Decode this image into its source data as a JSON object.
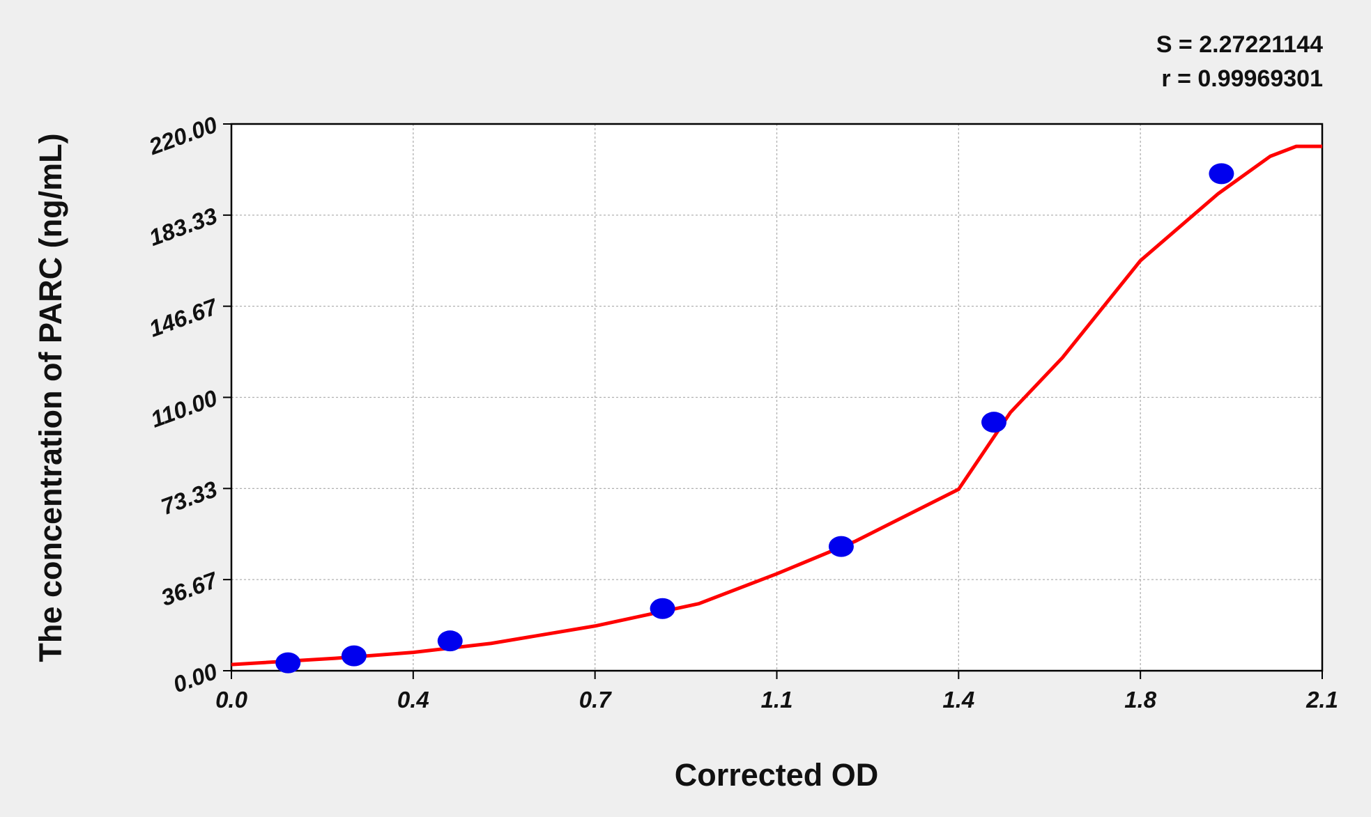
{
  "chart_data": {
    "type": "scatter",
    "annotations": [
      "S = 2.27221144",
      "r = 0.99969301"
    ],
    "xlabel": "Corrected OD",
    "ylabel": "The concentration of PARC (ng/mL)",
    "xlim": [
      0,
      2.1
    ],
    "xticks": [
      {
        "value": 0,
        "label": "0.0"
      },
      {
        "value": 0.35,
        "label": "0.4"
      },
      0.7,
      {
        "value": 1.05,
        "label": "1.1"
      },
      1.4,
      {
        "value": 1.75,
        "label": "1.8"
      },
      2.1
    ],
    "ylim": [
      0,
      220
    ],
    "yticks": [
      {
        "value": 0,
        "label": "0.00"
      },
      36.67,
      73.33,
      {
        "value": 110,
        "label": "110.00"
      },
      146.67,
      183.33,
      {
        "value": 220,
        "label": "220.00"
      }
    ],
    "grid": true,
    "series": [
      {
        "style": "markers",
        "color": "#0000ee",
        "x": [
          0.109,
          0.236,
          0.421,
          0.83,
          1.174,
          1.468,
          1.906
        ],
        "values": [
          3.2,
          6,
          12,
          25,
          50,
          100,
          200
        ]
      },
      {
        "style": "line",
        "color": "#ff0000",
        "x": [
          0,
          0.2,
          0.35,
          0.5,
          0.7,
          0.9,
          1.05,
          1.2,
          1.4,
          1.5,
          1.6,
          1.75,
          1.9,
          2.0,
          2.05,
          2.1
        ],
        "values": [
          2.5,
          5,
          7.4,
          11,
          18,
          27,
          39,
          52,
          73,
          104,
          126,
          165,
          192,
          207,
          211,
          211
        ]
      }
    ]
  }
}
